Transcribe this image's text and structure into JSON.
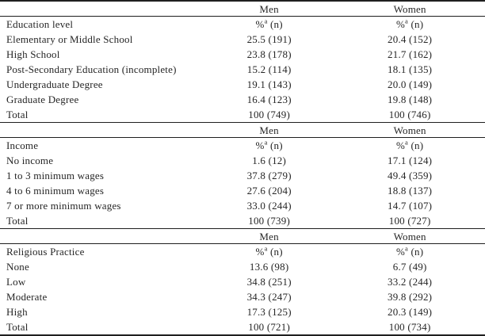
{
  "columns": {
    "men": "Men",
    "women": "Women"
  },
  "value_header": {
    "pct": "%",
    "footnote_marker": "a",
    "n": " (n)"
  },
  "sections": [
    {
      "label": "Education level",
      "rows": [
        {
          "label": "Elementary or Middle School",
          "men": "25.5 (191)",
          "women": "20.4 (152)"
        },
        {
          "label": "High School",
          "men": "23.8 (178)",
          "women": "21.7 (162)"
        },
        {
          "label": "Post-Secondary Education (incomplete)",
          "men": "15.2 (114)",
          "women": "18.1 (135)"
        },
        {
          "label": "Undergraduate Degree",
          "men": "19.1 (143)",
          "women": "20.0 (149)"
        },
        {
          "label": "Graduate Degree",
          "men": "16.4 (123)",
          "women": "19.8 (148)"
        },
        {
          "label": "Total",
          "men": "100 (749)",
          "women": "100 (746)"
        }
      ]
    },
    {
      "label": "Income",
      "rows": [
        {
          "label": "No income",
          "men": "1.6 (12)",
          "women": "17.1 (124)"
        },
        {
          "label": "1 to 3 minimum wages",
          "men": "37.8 (279)",
          "women": "49.4 (359)"
        },
        {
          "label": "4 to 6 minimum wages",
          "men": "27.6 (204)",
          "women": "18.8 (137)"
        },
        {
          "label": "7 or more minimum wages",
          "men": "33.0 (244)",
          "women": "14.7 (107)"
        },
        {
          "label": "Total",
          "men": "100 (739)",
          "women": "100 (727)"
        }
      ]
    },
    {
      "label": "Religious Practice",
      "rows": [
        {
          "label": "None",
          "men": "13.6 (98)",
          "women": "6.7 (49)"
        },
        {
          "label": "Low",
          "men": "34.8 (251)",
          "women": "33.2 (244)"
        },
        {
          "label": "Moderate",
          "men": "34.3 (247)",
          "women": "39.8 (292)"
        },
        {
          "label": "High",
          "men": "17.3 (125)",
          "women": "20.3 (149)"
        },
        {
          "label": "Total",
          "men": "100 (721)",
          "women": "100 (734)"
        }
      ]
    }
  ],
  "colors": {
    "text": "#262626",
    "line": "#1f1f1f",
    "background": "#ffffff"
  }
}
